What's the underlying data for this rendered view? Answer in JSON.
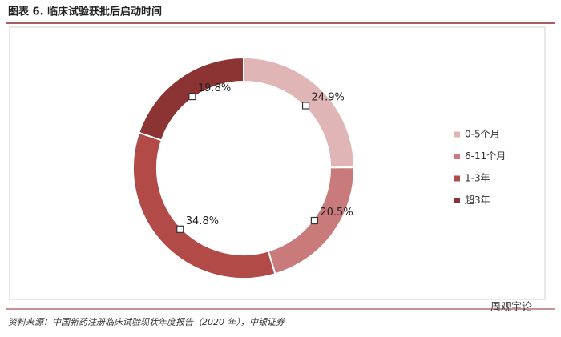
{
  "chart_data": {
    "type": "donut",
    "title": "图表 6. 临床试验获批后启动时间",
    "categories": [
      "0-5个月",
      "6-11个月",
      "1-3年",
      "超3年"
    ],
    "values": [
      24.9,
      20.5,
      34.8,
      19.8
    ],
    "value_labels": [
      "24.9%",
      "20.5%",
      "34.8%",
      "19.8%"
    ],
    "colors": [
      "#e0b5b5",
      "#c97b7b",
      "#b24a48",
      "#8c3434"
    ],
    "legend": "right",
    "source": "资料来源：中国新药注册临床试验现状年度报告（2020 年），中银证券",
    "watermark": "周观宇论"
  }
}
